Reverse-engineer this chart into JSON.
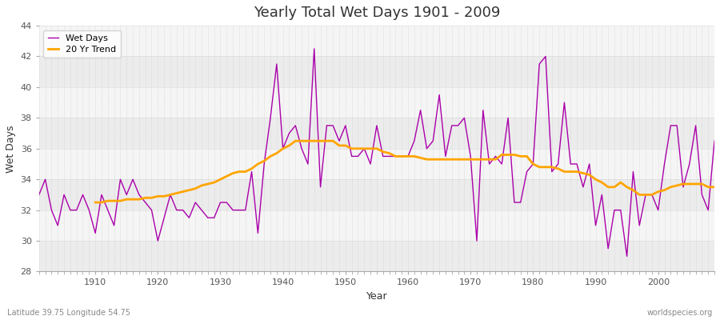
{
  "title": "Yearly Total Wet Days 1901 - 2009",
  "xlabel": "Year",
  "ylabel": "Wet Days",
  "subtitle": "Latitude 39.75 Longitude 54.75",
  "watermark": "worldspecies.org",
  "ylim": [
    28,
    44
  ],
  "yticks": [
    28,
    30,
    32,
    34,
    36,
    38,
    40,
    42,
    44
  ],
  "xlim": [
    1901,
    2009
  ],
  "wet_days_color": "#aa00aa",
  "trend_color": "#FFA500",
  "background_color": "#ffffff",
  "plot_bg_color": "#f0f0f0",
  "legend_label_wetdays": "Wet Days",
  "legend_label_trend": "20 Yr Trend",
  "years": [
    1901,
    1902,
    1903,
    1904,
    1905,
    1906,
    1907,
    1908,
    1909,
    1910,
    1911,
    1912,
    1913,
    1914,
    1915,
    1916,
    1917,
    1918,
    1919,
    1920,
    1921,
    1922,
    1923,
    1924,
    1925,
    1926,
    1927,
    1928,
    1929,
    1930,
    1931,
    1932,
    1933,
    1934,
    1935,
    1936,
    1937,
    1938,
    1939,
    1940,
    1941,
    1942,
    1943,
    1944,
    1945,
    1946,
    1947,
    1948,
    1949,
    1950,
    1951,
    1952,
    1953,
    1954,
    1955,
    1956,
    1957,
    1958,
    1959,
    1960,
    1961,
    1962,
    1963,
    1964,
    1965,
    1966,
    1967,
    1968,
    1969,
    1970,
    1971,
    1972,
    1973,
    1974,
    1975,
    1976,
    1977,
    1978,
    1979,
    1980,
    1981,
    1982,
    1983,
    1984,
    1985,
    1986,
    1987,
    1988,
    1989,
    1990,
    1991,
    1992,
    1993,
    1994,
    1995,
    1996,
    1997,
    1998,
    1999,
    2000,
    2001,
    2002,
    2003,
    2004,
    2005,
    2006,
    2007,
    2008,
    2009
  ],
  "wet_days": [
    33.0,
    34.0,
    32.0,
    31.0,
    33.0,
    32.0,
    32.0,
    33.0,
    32.0,
    30.5,
    33.0,
    32.0,
    31.0,
    34.0,
    33.0,
    34.0,
    33.0,
    32.5,
    32.0,
    30.0,
    31.5,
    33.0,
    32.0,
    32.0,
    31.5,
    32.5,
    32.0,
    31.5,
    31.5,
    32.5,
    32.5,
    32.0,
    32.0,
    32.0,
    34.5,
    30.5,
    35.0,
    38.0,
    41.5,
    36.0,
    37.0,
    37.5,
    36.0,
    35.0,
    42.5,
    33.5,
    37.5,
    37.5,
    36.5,
    37.5,
    35.5,
    35.5,
    36.0,
    35.0,
    37.5,
    35.5,
    35.5,
    35.5,
    35.5,
    35.5,
    36.5,
    38.5,
    36.0,
    36.5,
    39.5,
    35.5,
    37.5,
    37.5,
    38.0,
    35.5,
    30.0,
    38.5,
    35.0,
    35.5,
    35.0,
    38.0,
    32.5,
    32.5,
    34.5,
    35.0,
    41.5,
    42.0,
    34.5,
    35.0,
    39.0,
    35.0,
    35.0,
    33.5,
    35.0,
    31.0,
    33.0,
    29.5,
    32.0,
    32.0,
    29.0,
    34.5,
    31.0,
    33.0,
    33.0,
    32.0,
    35.0,
    37.5,
    37.5,
    33.5,
    35.0,
    37.5,
    33.0,
    32.0,
    36.5
  ],
  "trend_years": [
    1910,
    1911,
    1912,
    1913,
    1914,
    1915,
    1916,
    1917,
    1918,
    1919,
    1920,
    1921,
    1922,
    1923,
    1924,
    1925,
    1926,
    1927,
    1928,
    1929,
    1930,
    1931,
    1932,
    1933,
    1934,
    1935,
    1936,
    1937,
    1938,
    1939,
    1940,
    1941,
    1942,
    1943,
    1944,
    1945,
    1946,
    1947,
    1948,
    1949,
    1950,
    1951,
    1952,
    1953,
    1954,
    1955,
    1956,
    1957,
    1958,
    1959,
    1960,
    1961,
    1962,
    1963,
    1964,
    1965,
    1966,
    1967,
    1968,
    1969,
    1970,
    1971,
    1972,
    1973,
    1974,
    1975,
    1976,
    1977,
    1978,
    1979,
    1980,
    1981,
    1982,
    1983,
    1984,
    1985,
    1986,
    1987,
    1988,
    1989,
    1990,
    1991,
    1992,
    1993,
    1994,
    1995,
    1996,
    1997,
    1998,
    1999,
    2000,
    2001,
    2002,
    2003,
    2004,
    2005,
    2006,
    2007,
    2008,
    2009
  ],
  "trend_values": [
    32.5,
    32.5,
    32.6,
    32.6,
    32.6,
    32.7,
    32.7,
    32.7,
    32.8,
    32.8,
    32.9,
    32.9,
    33.0,
    33.1,
    33.2,
    33.3,
    33.4,
    33.6,
    33.7,
    33.8,
    34.0,
    34.2,
    34.4,
    34.5,
    34.5,
    34.7,
    35.0,
    35.2,
    35.5,
    35.7,
    36.0,
    36.2,
    36.5,
    36.5,
    36.5,
    36.5,
    36.5,
    36.5,
    36.5,
    36.2,
    36.2,
    36.0,
    36.0,
    36.0,
    36.0,
    36.0,
    35.8,
    35.7,
    35.5,
    35.5,
    35.5,
    35.5,
    35.4,
    35.3,
    35.3,
    35.3,
    35.3,
    35.3,
    35.3,
    35.3,
    35.3,
    35.3,
    35.3,
    35.3,
    35.3,
    35.6,
    35.6,
    35.6,
    35.5,
    35.5,
    35.0,
    34.8,
    34.8,
    34.8,
    34.7,
    34.5,
    34.5,
    34.5,
    34.4,
    34.3,
    34.0,
    33.8,
    33.5,
    33.5,
    33.8,
    33.5,
    33.3,
    33.0,
    33.0,
    33.0,
    33.2,
    33.3,
    33.5,
    33.6,
    33.7,
    33.7,
    33.7,
    33.7,
    33.5,
    33.5
  ],
  "band_colors": [
    "#ececec",
    "#f5f5f5"
  ]
}
